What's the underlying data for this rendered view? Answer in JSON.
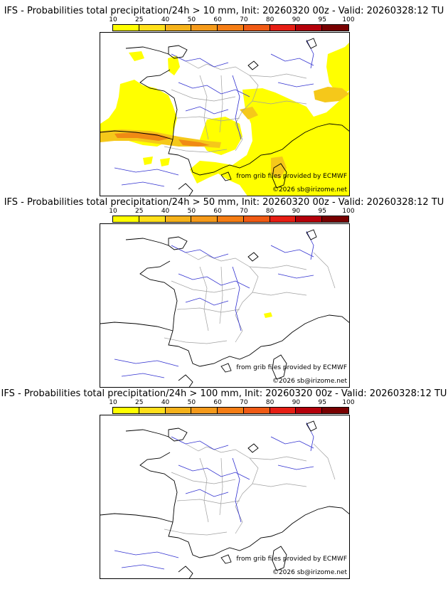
{
  "panels": [
    {
      "title": "IFS - Probabilities total precipitation/24h > 10 mm, Init: 20260320 00z - Valid: 20260328:12 TU",
      "threshold_mm": 10
    },
    {
      "title": "IFS - Probabilities total precipitation/24h > 50 mm, Init: 20260320 00z - Valid: 20260328:12 TU",
      "threshold_mm": 50
    },
    {
      "title": "IFS - Probabilities total precipitation/24h > 100 mm, Init: 20260320 00z - Valid: 20260328:12 TU",
      "threshold_mm": 100
    }
  ],
  "colorbar": {
    "ticks": [
      "10",
      "25",
      "40",
      "50",
      "60",
      "70",
      "80",
      "90",
      "95",
      "100"
    ],
    "colors": [
      "#ffff00",
      "#ffdf1a",
      "#f5b21a",
      "#f59a1a",
      "#f57d14",
      "#f05a14",
      "#e61e14",
      "#b4000a",
      "#780000"
    ]
  },
  "credits": {
    "source": "from grib files provided by ECMWF",
    "copyright": "©2026 sb@irizome.net"
  },
  "colors": {
    "coastline": "#000000",
    "rivers": "#3030d0",
    "borders": "#a0a0a0",
    "prob_low": "#ffff00",
    "prob_mid": "#f5c81a",
    "prob_high": "#f08a14"
  }
}
